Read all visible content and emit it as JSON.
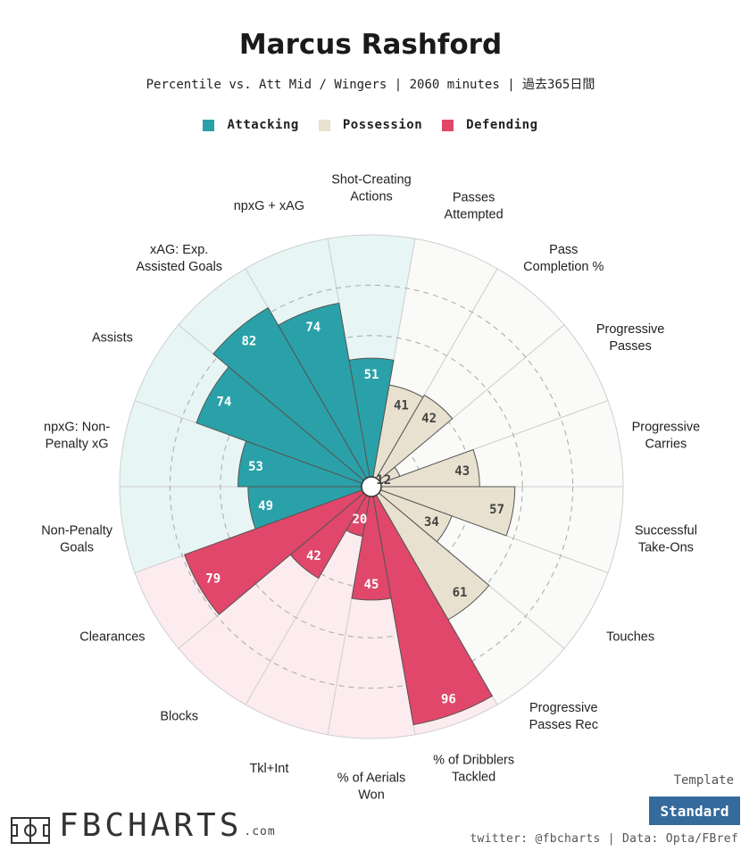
{
  "title": "Marcus Rashford",
  "subtitle": "Percentile vs. Att Mid / Wingers | 2060 minutes | 過去365日間",
  "legend": [
    {
      "label": "Attacking",
      "color": "#2aa1a8"
    },
    {
      "label": "Possession",
      "color": "#e8e1cf"
    },
    {
      "label": "Defending",
      "color": "#e0476b"
    }
  ],
  "chart_data": {
    "type": "radar",
    "title": "Marcus Rashford",
    "rlim": [
      0,
      100
    ],
    "grid": true,
    "legend_position": "top",
    "groups": {
      "Attacking": {
        "fill": "#2aa1a8",
        "background": "#e8f5f5"
      },
      "Possession": {
        "fill": "#e8e1cf",
        "background": "#fafaf8"
      },
      "Defending": {
        "fill": "#e0476b",
        "background": "#fcecef"
      }
    },
    "stats": [
      {
        "label": "Shot-Creating Actions",
        "value": 51,
        "group": "Attacking"
      },
      {
        "label": "Passes Attempted",
        "value": 41,
        "group": "Possession"
      },
      {
        "label": "Pass Completion %",
        "value": 42,
        "group": "Possession"
      },
      {
        "label": "Progressive Passes",
        "value": 12,
        "group": "Possession"
      },
      {
        "label": "Progressive Carries",
        "value": 43,
        "group": "Possession"
      },
      {
        "label": "Successful Take-Ons",
        "value": 57,
        "group": "Possession"
      },
      {
        "label": "Touches",
        "value": 34,
        "group": "Possession"
      },
      {
        "label": "Progressive Passes Rec",
        "value": 61,
        "group": "Possession"
      },
      {
        "label": "% of Dribblers Tackled",
        "value": 96,
        "group": "Defending"
      },
      {
        "label": "% of Aerials Won",
        "value": 45,
        "group": "Defending"
      },
      {
        "label": "Tkl+Int",
        "value": 20,
        "group": "Defending"
      },
      {
        "label": "Blocks",
        "value": 42,
        "group": "Defending"
      },
      {
        "label": "Clearances",
        "value": 79,
        "group": "Defending"
      },
      {
        "label": "Non-Penalty Goals",
        "value": 49,
        "group": "Attacking"
      },
      {
        "label": "npxG: Non-Penalty xG",
        "value": 53,
        "group": "Attacking"
      },
      {
        "label": "Assists",
        "value": 74,
        "group": "Attacking"
      },
      {
        "label": "xAG: Exp. Assisted Goals",
        "value": 82,
        "group": "Attacking"
      },
      {
        "label": "npxG + xAG",
        "value": 74,
        "group": "Attacking"
      }
    ],
    "label_lines": [
      [
        "Shot-Creating",
        "Actions"
      ],
      [
        "Passes",
        "Attempted"
      ],
      [
        "Pass",
        "Completion %"
      ],
      [
        "Progressive",
        "Passes"
      ],
      [
        "Progressive",
        "Carries"
      ],
      [
        "Successful",
        "Take-Ons"
      ],
      [
        "Touches"
      ],
      [
        "Progressive",
        "Passes Rec"
      ],
      [
        "% of Dribblers",
        "Tackled"
      ],
      [
        "% of Aerials",
        "Won"
      ],
      [
        "Tkl+Int"
      ],
      [
        "Blocks"
      ],
      [
        "Clearances"
      ],
      [
        "Non-Penalty",
        "Goals"
      ],
      [
        "npxG: Non-",
        "Penalty xG"
      ],
      [
        "Assists"
      ],
      [
        "xAG: Exp.",
        "Assisted Goals"
      ],
      [
        "npxG + xAG"
      ]
    ]
  },
  "footer": {
    "template_label": "Template",
    "template_button": "Standard",
    "credits": "twitter: @fbcharts | Data: Opta/FBref",
    "brand_name": "FBCHARTS",
    "brand_suffix": ".com"
  }
}
